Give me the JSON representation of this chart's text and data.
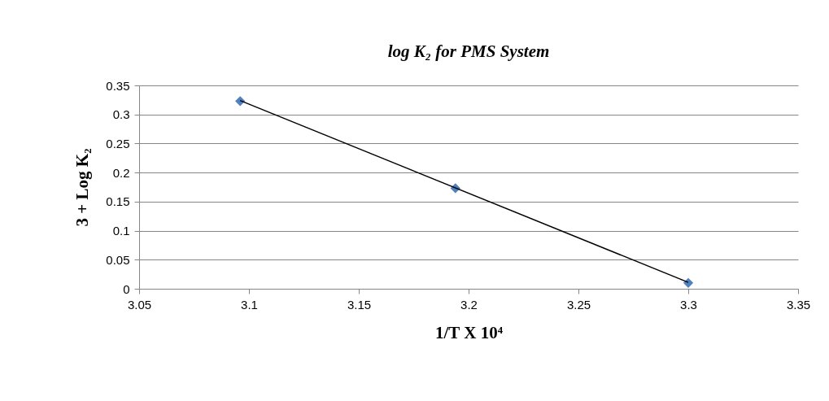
{
  "chart_data": {
    "type": "scatter",
    "title": "log K₂ for PMS System",
    "xlabel": "1/T X 10⁴",
    "ylabel": "3 + Log K₂",
    "x": [
      3.096,
      3.194,
      3.3
    ],
    "series": [
      {
        "color": "#4f81bd",
        "values": [
          0.323,
          0.173,
          0.01
        ],
        "marker": "diamond"
      },
      {
        "type": "line",
        "color": "#000000",
        "x": [
          3.096,
          3.3
        ],
        "values": [
          0.324,
          0.011
        ],
        "marker": "none"
      }
    ],
    "xlim": [
      3.05,
      3.35
    ],
    "xticks": [
      3.05,
      3.1,
      3.15,
      3.2,
      3.25,
      3.3,
      3.35
    ],
    "ylim": [
      0,
      0.35
    ],
    "yticks": [
      0,
      0.05,
      0.1,
      0.15,
      0.2,
      0.25,
      0.3,
      0.35
    ],
    "grid": "y"
  }
}
